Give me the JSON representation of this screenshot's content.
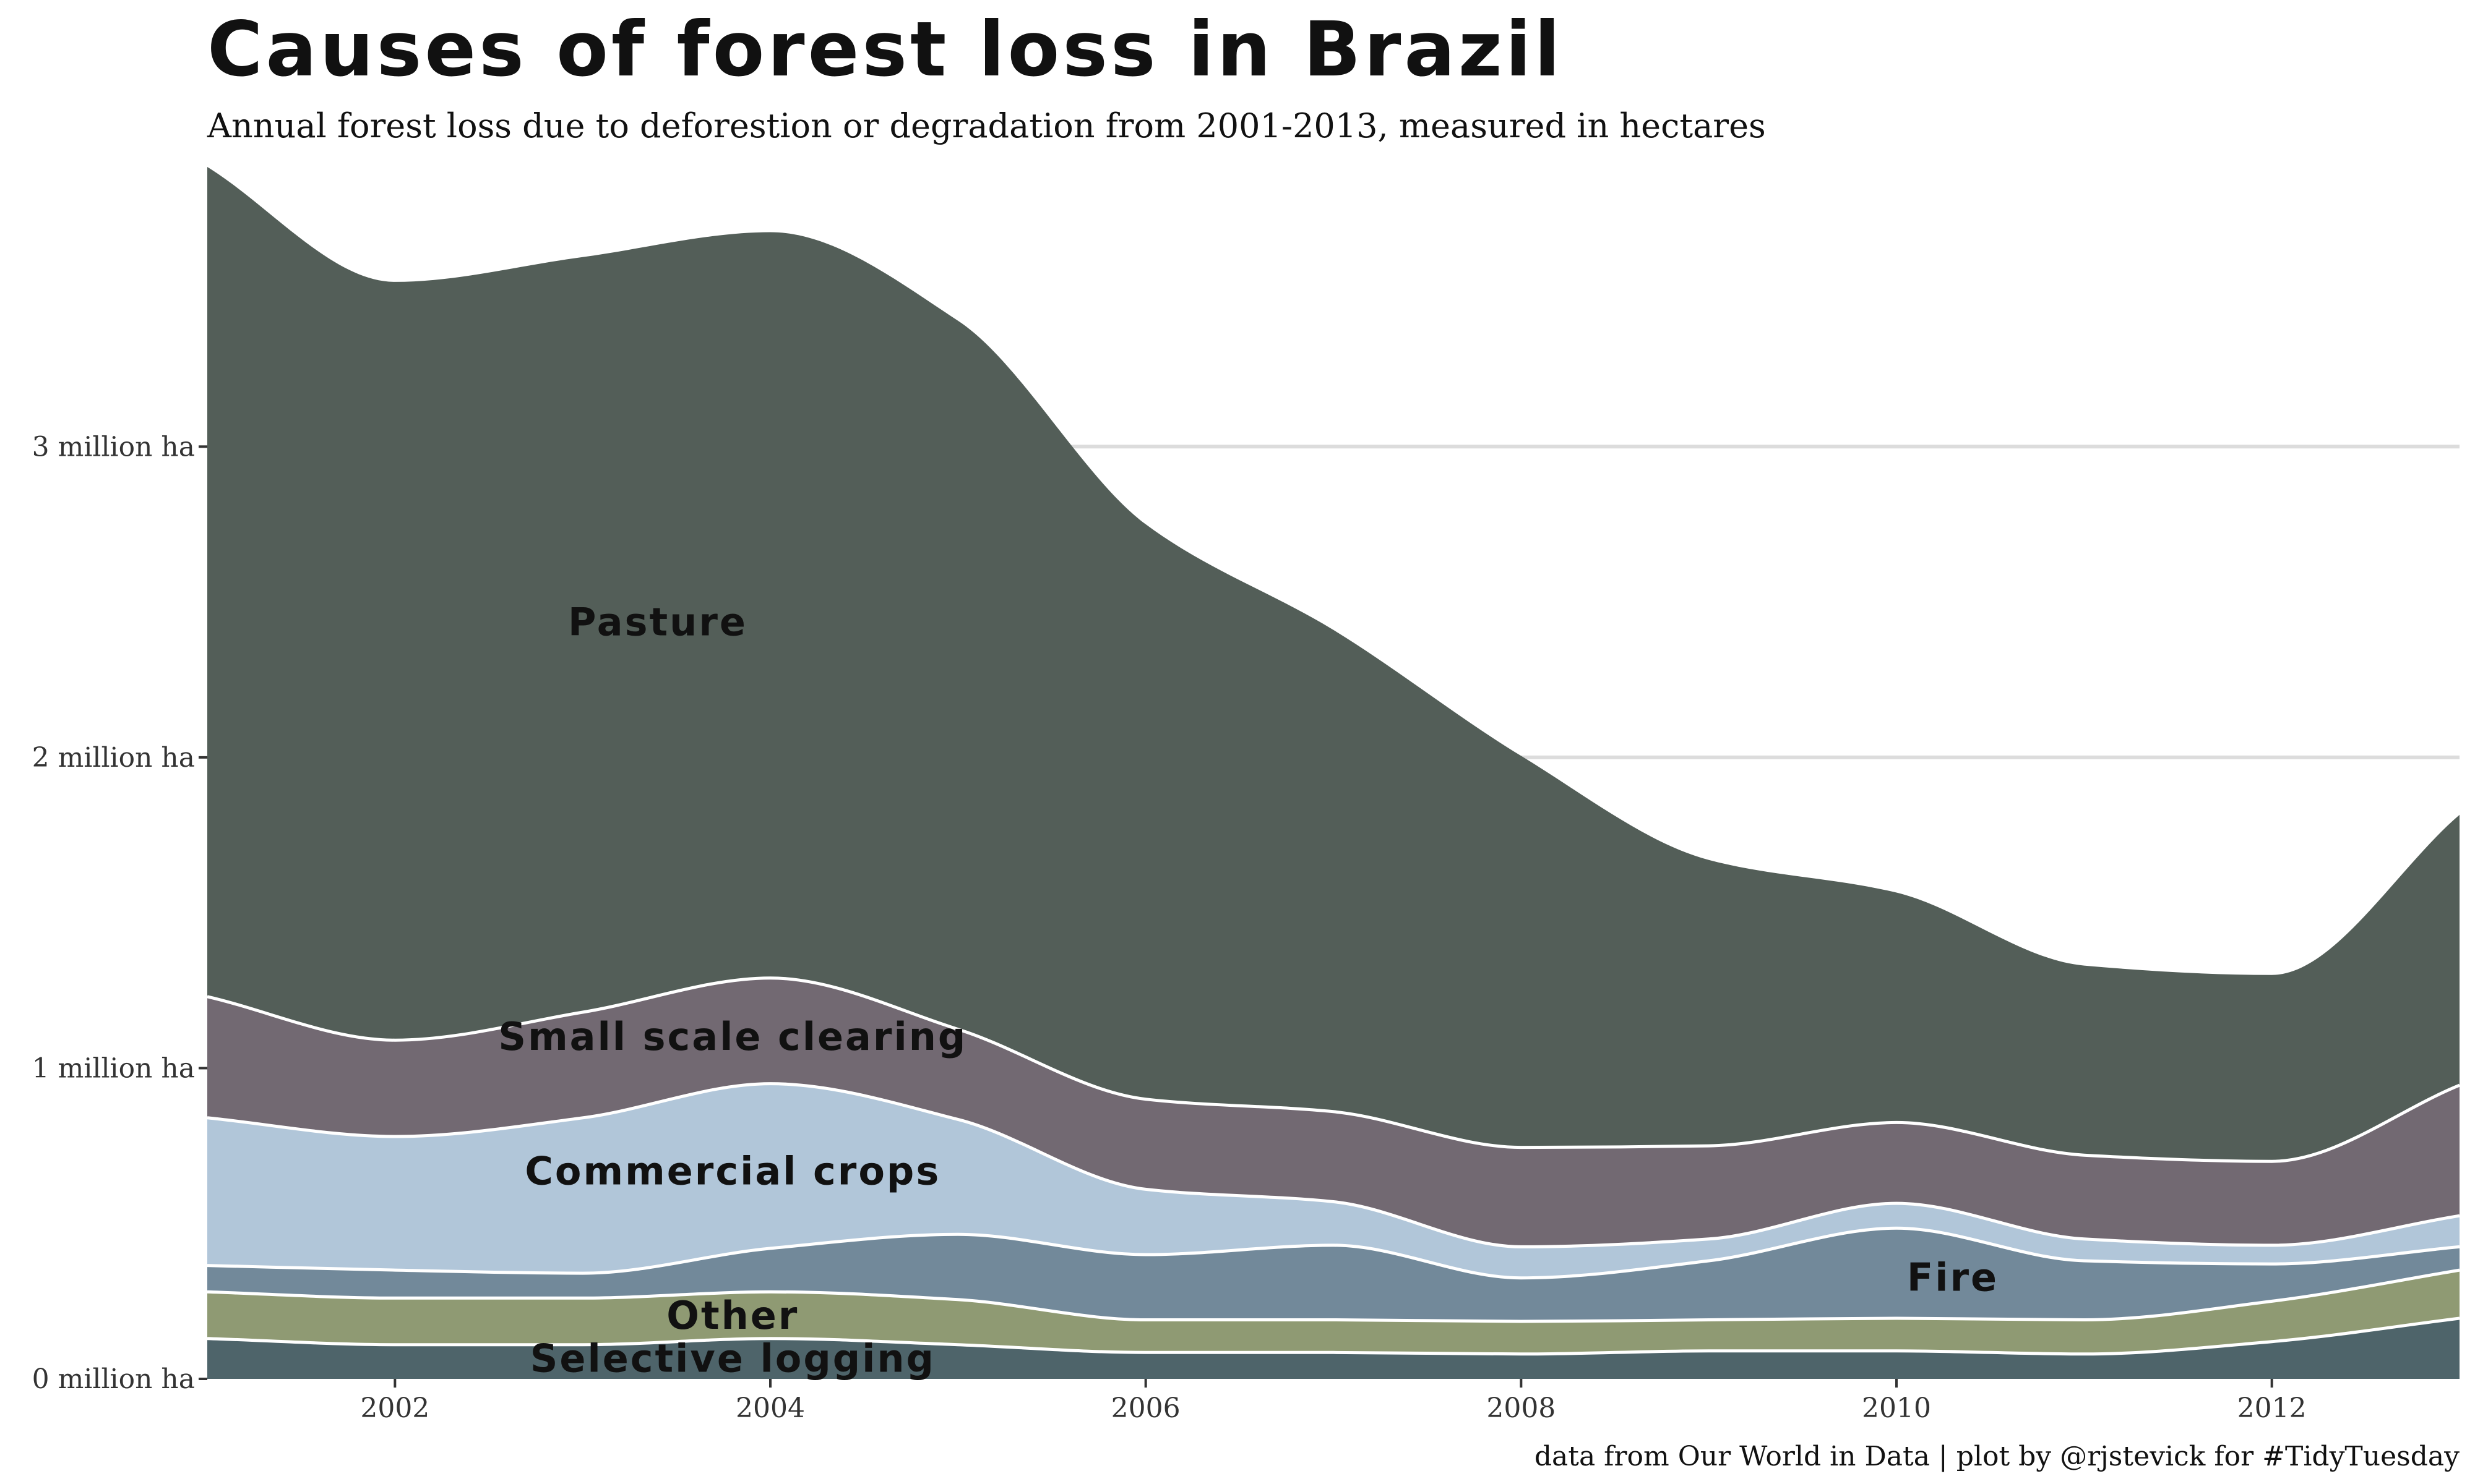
{
  "title": "Causes of forest loss in Brazil",
  "subtitle": "Annual forest loss due to deforestion or degradation from 2001-2013, measured in hectares",
  "caption": "data from Our World in Data  |  plot by @rjstevick for #TidyTuesday",
  "chart_data": {
    "type": "area",
    "stacked": true,
    "x": [
      2001,
      2002,
      2003,
      2004,
      2005,
      2006,
      2007,
      2008,
      2009,
      2010,
      2011,
      2012,
      2013
    ],
    "xlim": [
      2001,
      2013
    ],
    "x_ticks": [
      {
        "value": 2002,
        "label": "2002"
      },
      {
        "value": 2004,
        "label": "2004"
      },
      {
        "value": 2006,
        "label": "2006"
      },
      {
        "value": 2008,
        "label": "2008"
      },
      {
        "value": 2010,
        "label": "2010"
      },
      {
        "value": 2012,
        "label": "2012"
      }
    ],
    "ylim": [
      0,
      3900000
    ],
    "y_ticks": [
      {
        "value": 0,
        "label": "0 million ha"
      },
      {
        "value": 1000000,
        "label": "1 million ha"
      },
      {
        "value": 2000000,
        "label": "2 million ha"
      },
      {
        "value": 3000000,
        "label": "3 million ha"
      }
    ],
    "grid": "horizontal",
    "legend": "none (direct labels)",
    "unit": "hectares",
    "series": [
      {
        "name": "Selective logging",
        "color": "#4e646a",
        "values": [
          130000,
          110000,
          110000,
          130000,
          110000,
          85000,
          85000,
          80000,
          90000,
          90000,
          80000,
          120000,
          195000
        ]
      },
      {
        "name": "Other",
        "color": "#8f9a73",
        "values": [
          150000,
          150000,
          150000,
          150000,
          145000,
          105000,
          105000,
          105000,
          100000,
          105000,
          110000,
          130000,
          155000
        ]
      },
      {
        "name": "Fire",
        "color": "#72899a",
        "values": [
          85000,
          90000,
          80000,
          140000,
          210000,
          210000,
          240000,
          140000,
          190000,
          290000,
          190000,
          120000,
          75000
        ]
      },
      {
        "name": "Commercial crops",
        "color": "#b1c6d9",
        "values": [
          475000,
          430000,
          500000,
          530000,
          370000,
          210000,
          140000,
          100000,
          70000,
          80000,
          70000,
          60000,
          100000
        ]
      },
      {
        "name": "Small scale clearing",
        "color": "#726972",
        "values": [
          390000,
          310000,
          340000,
          340000,
          290000,
          290000,
          290000,
          320000,
          300000,
          260000,
          270000,
          270000,
          420000
        ]
      },
      {
        "name": "Pasture",
        "color": "#535e58",
        "values": [
          2670000,
          2440000,
          2430000,
          2400000,
          2280000,
          1850000,
          1550000,
          1260000,
          920000,
          740000,
          610000,
          600000,
          870000
        ]
      }
    ],
    "annotations": [
      {
        "text": "Pasture",
        "series": "Pasture",
        "x": 2003.4
      },
      {
        "text": "Small scale clearing",
        "series": "Small scale clearing",
        "x": 2003.8
      },
      {
        "text": "Commercial crops",
        "series": "Commercial crops",
        "x": 2003.8
      },
      {
        "text": "Other",
        "series": "Other",
        "x": 2003.8
      },
      {
        "text": "Selective logging",
        "series": "Selective logging",
        "x": 2003.8
      },
      {
        "text": "Fire",
        "series": "Fire",
        "x": 2010.3
      }
    ]
  }
}
